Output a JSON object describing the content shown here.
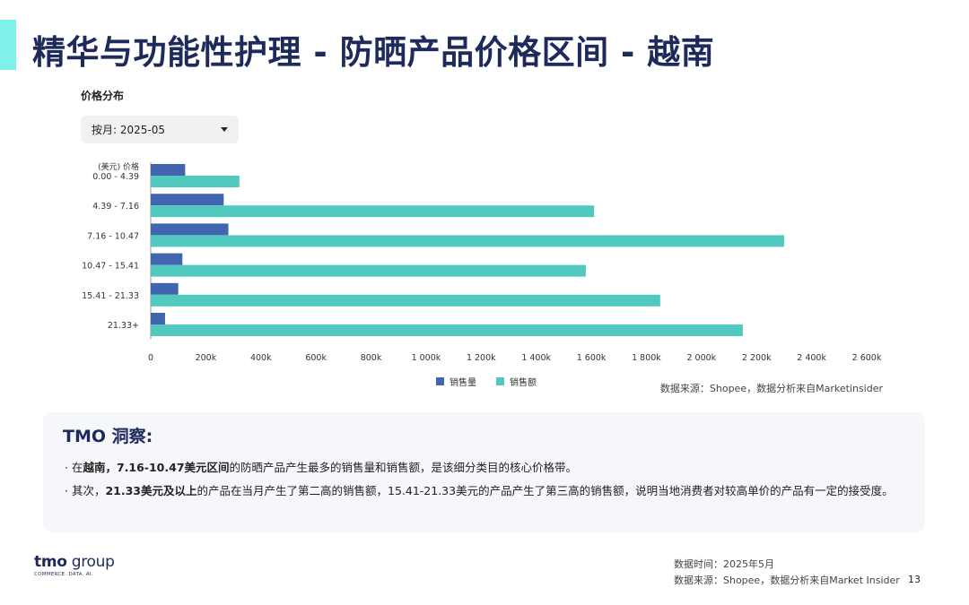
{
  "page": {
    "title": "精华与功能性护理 - 防晒产品价格区间 - 越南",
    "page_number": "13"
  },
  "chart_section": {
    "title": "价格分布",
    "filter_label": "按月: 2025-05",
    "source": "数据来源：Shopee，数据分析来自Marketinsider"
  },
  "chart_data": {
    "type": "bar",
    "orientation": "horizontal",
    "y_axis_title": "(美元) 价格",
    "categories": [
      "0.00 - 4.39",
      "4.39 - 7.16",
      "7.16 - 10.47",
      "10.47 - 15.41",
      "15.41 - 21.33",
      "21.33+"
    ],
    "series": [
      {
        "name": "销售量",
        "color": "#4265b0",
        "values": [
          125000,
          265000,
          282000,
          115000,
          100000,
          52000
        ]
      },
      {
        "name": "销售额",
        "color": "#52c9bf",
        "values": [
          322000,
          1610000,
          2300000,
          1580000,
          1850000,
          2150000
        ]
      }
    ],
    "xlim": [
      0,
      2600000
    ],
    "x_ticks": [
      "0",
      "200k",
      "400k",
      "600k",
      "800k",
      "1 000k",
      "1 200k",
      "1 400k",
      "1 600k",
      "1 800k",
      "2 000k",
      "2 200k",
      "2 400k",
      "2 600k"
    ],
    "legend_position": "bottom"
  },
  "insight": {
    "title": "TMO 洞察:",
    "line1": {
      "prefix": "· 在",
      "bold1": "越南，7.16-10.47美元区间",
      "suffix": "的防晒产品产生最多的销售量和销售额，是该细分类目的核心价格带。"
    },
    "line2": {
      "prefix": "· 其次，",
      "bold1": "21.33美元及以上",
      "suffix": "的产品在当月产生了第二高的销售额，15.41-21.33美元的产品产生了第三高的销售额，说明当地消费者对较高单价的产品有一定的接受度。"
    }
  },
  "logo": {
    "main": "tmo",
    "rest": " group",
    "tagline": "COMMERCE. DATA. AI."
  },
  "footer": {
    "date": "数据时间：2025年5月",
    "source": "数据来源：Shopee，数据分析来自Market Insider"
  }
}
